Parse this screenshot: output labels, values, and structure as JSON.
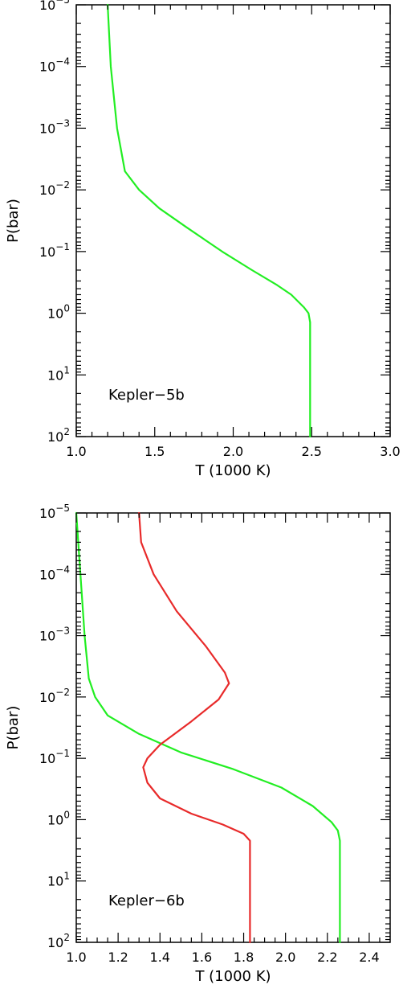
{
  "chart_data": [
    {
      "type": "line",
      "xlabel": "T (1000 K)",
      "ylabel": "P(bar)",
      "xlim": [
        1.0,
        3.0
      ],
      "ylim": [
        1e-05,
        100
      ],
      "y_scale": "log",
      "y_inverted": true,
      "grid": false,
      "annotation": "Kepler−5b",
      "xticks": [
        {
          "value": 1.0,
          "label": "1.0"
        },
        {
          "value": 1.5,
          "label": "1.5"
        },
        {
          "value": 2.0,
          "label": "2.0"
        },
        {
          "value": 2.5,
          "label": "2.5"
        },
        {
          "value": 3.0,
          "label": "3.0"
        }
      ],
      "x_minor_step": 0.1,
      "yticks": [
        {
          "value": 1e-05,
          "base": "10",
          "exp": "−5"
        },
        {
          "value": 0.0001,
          "base": "10",
          "exp": "−4"
        },
        {
          "value": 0.001,
          "base": "10",
          "exp": "−3"
        },
        {
          "value": 0.01,
          "base": "10",
          "exp": "−2"
        },
        {
          "value": 0.1,
          "base": "10",
          "exp": "−1"
        },
        {
          "value": 1,
          "base": "10",
          "exp": "0"
        },
        {
          "value": 10,
          "base": "10",
          "exp": "1"
        },
        {
          "value": 100,
          "base": "10",
          "exp": "2"
        }
      ],
      "series": [
        {
          "color": "#22ee22",
          "x": [
            1.2,
            1.22,
            1.26,
            1.31,
            1.4,
            1.53,
            1.7,
            1.93,
            2.12,
            2.28,
            2.37,
            2.45,
            2.48,
            2.49,
            2.49,
            2.49,
            2.49,
            2.49
          ],
          "y": [
            1e-05,
            0.0001,
            0.001,
            0.005,
            0.01,
            0.02,
            0.04,
            0.1,
            0.2,
            0.35,
            0.5,
            0.8,
            1.0,
            1.4,
            3,
            10,
            30,
            100
          ]
        }
      ]
    },
    {
      "type": "line",
      "xlabel": "T (1000 K)",
      "ylabel": "P(bar)",
      "xlim": [
        1.0,
        2.5
      ],
      "ylim": [
        1e-05,
        100
      ],
      "y_scale": "log",
      "y_inverted": true,
      "grid": false,
      "annotation": "Kepler−6b",
      "xticks": [
        {
          "value": 1.0,
          "label": "1.0"
        },
        {
          "value": 1.2,
          "label": "1.2"
        },
        {
          "value": 1.4,
          "label": "1.4"
        },
        {
          "value": 1.6,
          "label": "1.6"
        },
        {
          "value": 1.8,
          "label": "1.8"
        },
        {
          "value": 2.0,
          "label": "2.0"
        },
        {
          "value": 2.2,
          "label": "2.2"
        },
        {
          "value": 2.4,
          "label": "2.4"
        }
      ],
      "x_minor_step": 0.05,
      "yticks": [
        {
          "value": 1e-05,
          "base": "10",
          "exp": "−5"
        },
        {
          "value": 0.0001,
          "base": "10",
          "exp": "−4"
        },
        {
          "value": 0.001,
          "base": "10",
          "exp": "−3"
        },
        {
          "value": 0.01,
          "base": "10",
          "exp": "−2"
        },
        {
          "value": 0.1,
          "base": "10",
          "exp": "−1"
        },
        {
          "value": 1,
          "base": "10",
          "exp": "0"
        },
        {
          "value": 10,
          "base": "10",
          "exp": "1"
        },
        {
          "value": 100,
          "base": "10",
          "exp": "2"
        }
      ],
      "series": [
        {
          "color": "#22ee22",
          "x": [
            1.0,
            1.02,
            1.04,
            1.06,
            1.09,
            1.15,
            1.3,
            1.5,
            1.75,
            1.98,
            2.13,
            2.22,
            2.25,
            2.26,
            2.26,
            2.26,
            2.26
          ],
          "y": [
            1e-05,
            0.0001,
            0.001,
            0.005,
            0.01,
            0.02,
            0.04,
            0.08,
            0.15,
            0.3,
            0.6,
            1.1,
            1.5,
            2.2,
            5,
            20,
            100
          ]
        },
        {
          "color": "#e82a2a",
          "x": [
            1.3,
            1.31,
            1.37,
            1.48,
            1.62,
            1.71,
            1.73,
            1.68,
            1.55,
            1.4,
            1.34,
            1.32,
            1.34,
            1.4,
            1.55,
            1.7,
            1.8,
            1.83,
            1.83,
            1.83,
            1.83
          ],
          "y": [
            1e-05,
            3e-05,
            0.0001,
            0.0004,
            0.0015,
            0.004,
            0.006,
            0.011,
            0.025,
            0.06,
            0.1,
            0.14,
            0.25,
            0.45,
            0.8,
            1.2,
            1.7,
            2.2,
            5,
            20,
            100
          ]
        }
      ]
    }
  ]
}
